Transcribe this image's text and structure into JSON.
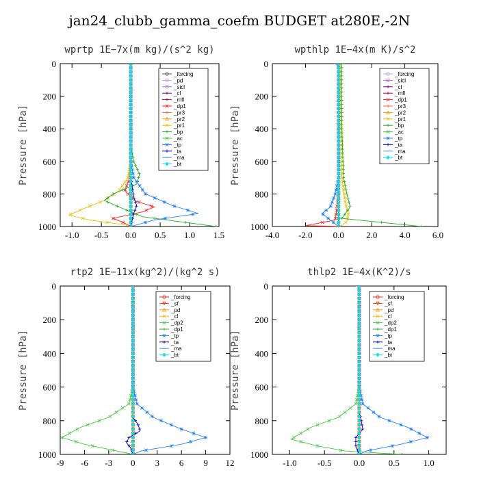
{
  "page": {
    "title": "jan24_clubb_gamma_coefm  BUDGET at280E,-2N"
  },
  "chart_data": [
    {
      "type": "line",
      "title": "wprtp   1E−7x(m kg)/(s^2 kg)",
      "ylabel": "Pressure [hPa]",
      "xlim": [
        -1.2,
        1.5
      ],
      "ylim": [
        1000,
        0
      ],
      "xticks": [
        -1.0,
        -0.5,
        0.0,
        0.5,
        1.0,
        1.5
      ],
      "xtick_labels": [
        "-1.0",
        "-0.5",
        "0.0",
        "0.5",
        "1.0",
        "1.5"
      ],
      "yticks": [
        0,
        200,
        400,
        600,
        800,
        1000
      ],
      "ytick_labels": [
        "0",
        "200",
        "400",
        "600",
        "800",
        "1000"
      ],
      "grid": false,
      "legend_position": "top-right",
      "series": [
        {
          "name": "_forcing",
          "color": "#555555",
          "marker": "o",
          "x": [
            0,
            0,
            0,
            0,
            0,
            0,
            0
          ],
          "y": [
            0,
            200,
            400,
            600,
            800,
            900,
            1000
          ]
        },
        {
          "name": "_pd",
          "color": "#c8a0e0",
          "marker": "o",
          "x": [
            0,
            0
          ],
          "y": [
            0,
            1000
          ]
        },
        {
          "name": "_sicl",
          "color": "#b070d0",
          "marker": "o",
          "x": [
            0,
            0
          ],
          "y": [
            0,
            1000
          ]
        },
        {
          "name": "_cl",
          "color": "#800080",
          "marker": "+",
          "x": [
            0,
            0
          ],
          "y": [
            0,
            1000
          ]
        },
        {
          "name": "_mfl",
          "color": "#c00040",
          "marker": "+",
          "x": [
            0,
            0
          ],
          "y": [
            0,
            1000
          ]
        },
        {
          "name": "_dp1",
          "color": "#ff2020",
          "marker": "x",
          "x": [
            0,
            0,
            -0.02,
            -0.1,
            0.05,
            0.4,
            0.2,
            -0.3,
            -0.1,
            0
          ],
          "y": [
            0,
            600,
            700,
            780,
            840,
            880,
            910,
            950,
            980,
            1000
          ]
        },
        {
          "name": "_pr3",
          "color": "#ff6040",
          "marker": "+",
          "x": [
            0,
            0
          ],
          "y": [
            0,
            1000
          ]
        },
        {
          "name": "_pr2",
          "color": "#ff9900",
          "marker": "^",
          "x": [
            0,
            0
          ],
          "y": [
            0,
            1000
          ]
        },
        {
          "name": "_pr1",
          "color": "#f0c000",
          "marker": "x",
          "x": [
            0,
            0,
            -0.05,
            -0.2,
            -0.45,
            -0.8,
            -1.05,
            -0.7,
            -0.1,
            0
          ],
          "y": [
            0,
            600,
            700,
            780,
            840,
            890,
            930,
            960,
            990,
            1000
          ]
        },
        {
          "name": "_bp",
          "color": "#20b020",
          "marker": "+",
          "x": [
            0,
            0,
            0.05,
            0.15,
            0.1,
            -0.3,
            -0.45,
            -0.2,
            0.2,
            1.45
          ],
          "y": [
            0,
            500,
            600,
            680,
            740,
            800,
            840,
            880,
            940,
            1000
          ]
        },
        {
          "name": "_ac",
          "color": "#40c840",
          "marker": "x",
          "x": [
            0,
            0,
            0,
            0
          ],
          "y": [
            0,
            600,
            900,
            1000
          ]
        },
        {
          "name": "_tp",
          "color": "#2080ff",
          "marker": "*",
          "x": [
            0,
            0,
            0.05,
            0.25,
            0.7,
            1.15,
            0.4,
            0
          ],
          "y": [
            0,
            600,
            700,
            800,
            870,
            920,
            960,
            1000
          ]
        },
        {
          "name": "_ta",
          "color": "#0000c0",
          "marker": "+",
          "x": [
            0,
            0,
            0.05,
            0.1,
            0.05,
            0
          ],
          "y": [
            0,
            700,
            820,
            870,
            920,
            1000
          ]
        },
        {
          "name": "_ma",
          "color": "#40a0e0",
          "marker": "-",
          "x": [
            0,
            0
          ],
          "y": [
            0,
            1000
          ]
        },
        {
          "name": "_bt",
          "color": "#00e0ff",
          "marker": "d",
          "x": [
            0,
            0
          ],
          "y": [
            0,
            1000
          ]
        }
      ]
    },
    {
      "type": "line",
      "title": "wpthlp   1E−4x(m K)/s^2",
      "ylabel": "Pressure [hPa]",
      "xlim": [
        -4.0,
        6.0
      ],
      "ylim": [
        1000,
        0
      ],
      "xticks": [
        -4,
        -2,
        0,
        2,
        4,
        6
      ],
      "xtick_labels": [
        "-4.0",
        "-2.0",
        "0.0",
        "2.0",
        "4.0",
        "6.0"
      ],
      "yticks": [
        0,
        200,
        400,
        600,
        800,
        1000
      ],
      "ytick_labels": [
        "0",
        "200",
        "400",
        "600",
        "800",
        "1000"
      ],
      "grid": false,
      "legend_position": "top-right",
      "series": [
        {
          "name": "_forcing",
          "color": "#c8a0e0",
          "marker": "o",
          "x": [
            0,
            0
          ],
          "y": [
            0,
            1000
          ]
        },
        {
          "name": "_sicl",
          "color": "#b070d0",
          "marker": "o",
          "x": [
            0,
            0
          ],
          "y": [
            0,
            1000
          ]
        },
        {
          "name": "_cl",
          "color": "#800080",
          "marker": "+",
          "x": [
            0,
            0
          ],
          "y": [
            0,
            1000
          ]
        },
        {
          "name": "_mfl",
          "color": "#c00040",
          "marker": "+",
          "x": [
            0,
            0
          ],
          "y": [
            0,
            1000
          ]
        },
        {
          "name": "_dp1",
          "color": "#ff2020",
          "marker": "x",
          "x": [
            0,
            0,
            -0.2,
            -2.0,
            -0.5,
            0
          ],
          "y": [
            0,
            800,
            960,
            995,
            998,
            1000
          ]
        },
        {
          "name": "_pr3",
          "color": "#ff6040",
          "marker": "+",
          "x": [
            0,
            0
          ],
          "y": [
            0,
            1000
          ]
        },
        {
          "name": "_pr2",
          "color": "#ff9900",
          "marker": "^",
          "x": [
            0,
            0
          ],
          "y": [
            0,
            1000
          ]
        },
        {
          "name": "_pr1",
          "color": "#f0c000",
          "marker": "x",
          "x": [
            0.1,
            0.15,
            0.2,
            0.4,
            0.6,
            0.5,
            0.1
          ],
          "y": [
            0,
            400,
            700,
            850,
            920,
            970,
            1000
          ]
        },
        {
          "name": "_bp",
          "color": "#20b020",
          "marker": "+",
          "x": [
            0.2,
            0.2,
            0.3,
            0.5,
            0.7,
            0.2,
            5.0
          ],
          "y": [
            0,
            400,
            700,
            800,
            880,
            950,
            1000
          ]
        },
        {
          "name": "_ac",
          "color": "#40c840",
          "marker": "x",
          "x": [
            0,
            0,
            0
          ],
          "y": [
            0,
            900,
            1000
          ]
        },
        {
          "name": "_tp",
          "color": "#2080ff",
          "marker": "*",
          "x": [
            0,
            0,
            -0.2,
            -0.5,
            -1.0,
            -0.5,
            0
          ],
          "y": [
            0,
            700,
            800,
            880,
            920,
            960,
            1000
          ]
        },
        {
          "name": "_ta",
          "color": "#0000c0",
          "marker": "+",
          "x": [
            0,
            0
          ],
          "y": [
            0,
            1000
          ]
        },
        {
          "name": "_ma",
          "color": "#40a0e0",
          "marker": "-",
          "x": [
            -0.2,
            0,
            0
          ],
          "y": [
            0,
            20,
            1000
          ]
        },
        {
          "name": "_bt",
          "color": "#00e0ff",
          "marker": "d",
          "x": [
            0,
            0
          ],
          "y": [
            0,
            1000
          ]
        }
      ]
    },
    {
      "type": "line",
      "title": "rtp2   1E−11x(kg^2)/(kg^2 s)",
      "ylabel": "Pressure [hPa]",
      "xlim": [
        -9,
        12
      ],
      "ylim": [
        1000,
        0
      ],
      "xticks": [
        -9,
        -6,
        -3,
        0,
        3,
        6,
        9,
        12
      ],
      "xtick_labels": [
        "-9",
        "-6",
        "-3",
        "0",
        "3",
        "6",
        "9",
        "12"
      ],
      "yticks": [
        0,
        200,
        400,
        600,
        800,
        1000
      ],
      "ytick_labels": [
        "0",
        "200",
        "400",
        "600",
        "800",
        "1000"
      ],
      "grid": false,
      "legend_position": "top-right",
      "series": [
        {
          "name": "_forcing",
          "color": "#ff2020",
          "marker": "o",
          "x": [
            0,
            0
          ],
          "y": [
            0,
            1000
          ]
        },
        {
          "name": "_sf",
          "color": "#e04000",
          "marker": "v",
          "x": [
            0,
            0
          ],
          "y": [
            0,
            1000
          ]
        },
        {
          "name": "_pd",
          "color": "#ff9900",
          "marker": "^",
          "x": [
            0,
            0
          ],
          "y": [
            0,
            1000
          ]
        },
        {
          "name": "_cl",
          "color": "#f0c000",
          "marker": "x",
          "x": [
            0,
            0
          ],
          "y": [
            0,
            1000
          ]
        },
        {
          "name": "_dp2",
          "color": "#40c840",
          "marker": "x",
          "x": [
            0,
            0,
            -0.5,
            -3,
            -6.5,
            -8.8,
            -6,
            -2,
            0
          ],
          "y": [
            0,
            600,
            700,
            780,
            840,
            900,
            940,
            980,
            1000
          ]
        },
        {
          "name": "_dp1",
          "color": "#20b020",
          "marker": "+",
          "x": [
            0,
            0
          ],
          "y": [
            0,
            1000
          ]
        },
        {
          "name": "_tp",
          "color": "#2080ff",
          "marker": "*",
          "x": [
            0,
            0,
            0.5,
            2.5,
            6,
            9,
            6,
            1,
            0
          ],
          "y": [
            0,
            600,
            700,
            780,
            850,
            900,
            940,
            980,
            1000
          ]
        },
        {
          "name": "_ta",
          "color": "#0000c0",
          "marker": "+",
          "x": [
            0,
            0,
            0.6,
            0.9,
            -0.5,
            -0.8,
            -0.3,
            0
          ],
          "y": [
            0,
            780,
            820,
            860,
            900,
            930,
            960,
            1000
          ]
        },
        {
          "name": "_ma",
          "color": "#40a0e0",
          "marker": "-",
          "x": [
            0,
            0
          ],
          "y": [
            0,
            1000
          ]
        },
        {
          "name": "_bt",
          "color": "#00e0ff",
          "marker": "d",
          "x": [
            0,
            0
          ],
          "y": [
            0,
            1000
          ]
        }
      ]
    },
    {
      "type": "line",
      "title": "thlp2   1E−4x(K^2)/s",
      "ylabel": "Pressure [hPa]",
      "xlim": [
        -1.25,
        1.25
      ],
      "ylim": [
        1000,
        0
      ],
      "xticks": [
        -1.0,
        -0.5,
        0.0,
        0.5,
        1.0
      ],
      "xtick_labels": [
        "-1.0",
        "-0.5",
        "0.0",
        "0.5",
        "1.0"
      ],
      "yticks": [
        0,
        200,
        400,
        600,
        800,
        1000
      ],
      "ytick_labels": [
        "0",
        "200",
        "400",
        "600",
        "800",
        "1000"
      ],
      "grid": false,
      "legend_position": "top-right",
      "series": [
        {
          "name": "_forcing",
          "color": "#ff2020",
          "marker": "o",
          "x": [
            0,
            0
          ],
          "y": [
            0,
            1000
          ]
        },
        {
          "name": "_sf",
          "color": "#e04000",
          "marker": "v",
          "x": [
            0,
            0
          ],
          "y": [
            0,
            1000
          ]
        },
        {
          "name": "_pd",
          "color": "#ff9900",
          "marker": "^",
          "x": [
            0,
            0
          ],
          "y": [
            0,
            1000
          ]
        },
        {
          "name": "_cl",
          "color": "#f0c000",
          "marker": "x",
          "x": [
            0,
            0
          ],
          "y": [
            0,
            1000
          ]
        },
        {
          "name": "_dp2",
          "color": "#40c840",
          "marker": "x",
          "x": [
            0,
            0,
            -0.05,
            -0.3,
            -0.7,
            -0.98,
            -0.6,
            -0.2,
            0.6
          ],
          "y": [
            0,
            600,
            700,
            780,
            840,
            910,
            950,
            980,
            1000
          ]
        },
        {
          "name": "_dp1",
          "color": "#20b020",
          "marker": "+",
          "x": [
            0,
            0
          ],
          "y": [
            0,
            1000
          ]
        },
        {
          "name": "_tp",
          "color": "#2080ff",
          "marker": "*",
          "x": [
            0,
            0,
            0.05,
            0.3,
            0.7,
            0.98,
            0.6,
            0.1,
            0
          ],
          "y": [
            0,
            600,
            700,
            780,
            840,
            900,
            940,
            980,
            1000
          ]
        },
        {
          "name": "_ta",
          "color": "#0000c0",
          "marker": "+",
          "x": [
            0,
            0,
            0.03,
            0.05,
            -0.05,
            -0.05,
            0
          ],
          "y": [
            0,
            750,
            800,
            850,
            900,
            950,
            1000
          ]
        },
        {
          "name": "_ma",
          "color": "#40a0e0",
          "marker": "-",
          "x": [
            -0.03,
            0,
            0
          ],
          "y": [
            0,
            20,
            1000
          ]
        },
        {
          "name": "_bt",
          "color": "#00e0ff",
          "marker": "d",
          "x": [
            0,
            0
          ],
          "y": [
            0,
            1000
          ]
        }
      ]
    }
  ]
}
